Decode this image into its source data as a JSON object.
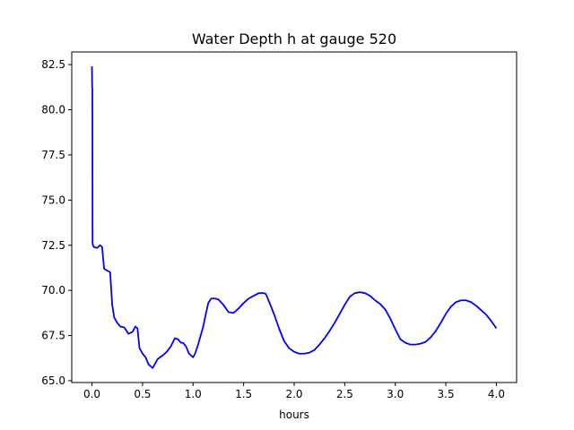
{
  "chart_data": {
    "type": "line",
    "title": "Water Depth h at gauge 520",
    "xlabel": "hours",
    "ylabel": "",
    "xlim": [
      -0.2,
      4.2
    ],
    "ylim": [
      64.9,
      83.2
    ],
    "xticks": [
      0.0,
      0.5,
      1.0,
      1.5,
      2.0,
      2.5,
      3.0,
      3.5,
      4.0
    ],
    "xtick_labels": [
      "0.0",
      "0.5",
      "1.0",
      "1.5",
      "2.0",
      "2.5",
      "3.0",
      "3.5",
      "4.0"
    ],
    "yticks": [
      65.0,
      67.5,
      70.0,
      72.5,
      75.0,
      77.5,
      80.0,
      82.5
    ],
    "ytick_labels": [
      "65.0",
      "67.5",
      "70.0",
      "72.5",
      "75.0",
      "77.5",
      "80.0",
      "82.5"
    ],
    "grid": false,
    "series": [
      {
        "color": "#0000ff",
        "x": [
          0.0,
          0.002,
          0.004,
          0.006,
          0.01,
          0.02,
          0.05,
          0.08,
          0.1,
          0.12,
          0.15,
          0.18,
          0.2,
          0.22,
          0.25,
          0.28,
          0.32,
          0.36,
          0.4,
          0.43,
          0.45,
          0.47,
          0.5,
          0.53,
          0.56,
          0.6,
          0.62,
          0.65,
          0.7,
          0.74,
          0.78,
          0.82,
          0.85,
          0.88,
          0.9,
          0.93,
          0.96,
          1.0,
          1.02,
          1.05,
          1.1,
          1.15,
          1.18,
          1.22,
          1.25,
          1.3,
          1.35,
          1.4,
          1.45,
          1.5,
          1.55,
          1.6,
          1.65,
          1.7,
          1.72,
          1.75,
          1.8,
          1.85,
          1.9,
          1.95,
          2.0,
          2.05,
          2.1,
          2.15,
          2.2,
          2.25,
          2.3,
          2.35,
          2.4,
          2.45,
          2.5,
          2.55,
          2.6,
          2.65,
          2.7,
          2.75,
          2.8,
          2.85,
          2.9,
          2.95,
          3.0,
          3.05,
          3.1,
          3.15,
          3.2,
          3.25,
          3.3,
          3.35,
          3.4,
          3.45,
          3.5,
          3.55,
          3.6,
          3.65,
          3.7,
          3.75,
          3.8,
          3.85,
          3.9,
          3.95,
          4.0
        ],
        "y": [
          82.4,
          81.2,
          81.2,
          72.6,
          72.5,
          72.4,
          72.35,
          72.5,
          72.4,
          71.2,
          71.1,
          71.0,
          69.2,
          68.5,
          68.2,
          68.0,
          67.95,
          67.6,
          67.7,
          68.0,
          67.9,
          66.8,
          66.5,
          66.3,
          65.9,
          65.7,
          65.9,
          66.2,
          66.4,
          66.6,
          66.9,
          67.35,
          67.3,
          67.1,
          67.1,
          66.9,
          66.5,
          66.3,
          66.5,
          67.0,
          68.0,
          69.3,
          69.55,
          69.55,
          69.5,
          69.2,
          68.8,
          68.75,
          69.0,
          69.3,
          69.55,
          69.7,
          69.85,
          69.85,
          69.8,
          69.4,
          68.7,
          67.9,
          67.2,
          66.8,
          66.6,
          66.5,
          66.5,
          66.55,
          66.7,
          67.0,
          67.35,
          67.75,
          68.2,
          68.7,
          69.2,
          69.65,
          69.85,
          69.9,
          69.85,
          69.7,
          69.45,
          69.25,
          68.95,
          68.45,
          67.85,
          67.3,
          67.1,
          67.0,
          67.0,
          67.05,
          67.15,
          67.4,
          67.75,
          68.2,
          68.7,
          69.1,
          69.35,
          69.45,
          69.45,
          69.35,
          69.15,
          68.9,
          68.65,
          68.3,
          67.9
        ]
      }
    ]
  }
}
